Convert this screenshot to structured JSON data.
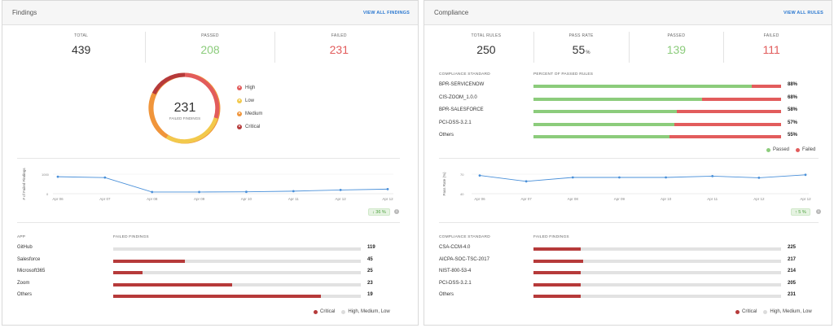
{
  "findings": {
    "title": "Findings",
    "view_all": "VIEW ALL FINDINGS",
    "stats": [
      {
        "label": "TOTAL",
        "value": "439"
      },
      {
        "label": "PASSED",
        "value": "208"
      },
      {
        "label": "FAILED",
        "value": "231"
      }
    ],
    "donut": {
      "value": "231",
      "label": "FAILED FINDINGS",
      "legend": [
        {
          "label": "High",
          "color": "#e25c5c"
        },
        {
          "label": "Low",
          "color": "#f2c94c"
        },
        {
          "label": "Medium",
          "color": "#f0953b"
        },
        {
          "label": "Critical",
          "color": "#b63a3a"
        }
      ]
    },
    "trend": {
      "ylabel": "# of Failed Findings",
      "yticks": [
        "1000",
        "0"
      ],
      "badge": "36 %",
      "info": "i"
    },
    "table": {
      "col_app": "APP",
      "col_findings": "FAILED FINDINGS",
      "rows": [
        {
          "label": "GitHub",
          "value": "119",
          "fraction": 0.0
        },
        {
          "label": "Salesforce",
          "value": "45",
          "fraction": 0.29
        },
        {
          "label": "Microsoft365",
          "value": "25",
          "fraction": 0.12
        },
        {
          "label": "Zoom",
          "value": "23",
          "fraction": 0.48
        },
        {
          "label": "Others",
          "value": "19",
          "fraction": 0.84
        }
      ],
      "legend": [
        {
          "label": "Critical",
          "color": "#b63a3a"
        },
        {
          "label": "High, Medium, Low",
          "color": "#dcdcdc"
        }
      ]
    }
  },
  "compliance": {
    "title": "Compliance",
    "view_all": "VIEW ALL RULES",
    "stats": [
      {
        "label": "TOTAL RULES",
        "value": "250"
      },
      {
        "label": "PASS RATE",
        "value": "55",
        "unit": "%"
      },
      {
        "label": "PASSED",
        "value": "139"
      },
      {
        "label": "FAILED",
        "value": "111"
      }
    ],
    "standards": {
      "col_standard": "COMPLIANCE STANDARD",
      "col_percent": "PERCENT OF PASSED RULES",
      "rows": [
        {
          "label": "BPR-SERVICENOW",
          "value": "88%",
          "fraction": 0.88
        },
        {
          "label": "CIS-ZOOM_1.0.0",
          "value": "68%",
          "fraction": 0.68
        },
        {
          "label": "BPR-SALESFORCE",
          "value": "58%",
          "fraction": 0.58
        },
        {
          "label": "PCI-DSS-3.2.1",
          "value": "57%",
          "fraction": 0.57
        },
        {
          "label": "Others",
          "value": "55%",
          "fraction": 0.55
        }
      ],
      "legend": [
        {
          "label": "Passed",
          "color": "#8ccc7c"
        },
        {
          "label": "Failed",
          "color": "#e25c5c"
        }
      ]
    },
    "trend": {
      "ylabel": "Pass Rate (%)",
      "yticks": [
        "70",
        "40"
      ],
      "badge": "5 %",
      "info": "i"
    },
    "failed": {
      "col_standard": "COMPLIANCE STANDARD",
      "col_findings": "FAILED FINDINGS",
      "rows": [
        {
          "label": "CSA-CCM-4.0",
          "value": "225",
          "fraction": 0.19
        },
        {
          "label": "AICPA-SOC-TSC-2017",
          "value": "217",
          "fraction": 0.2
        },
        {
          "label": "NIST-800-53-4",
          "value": "214",
          "fraction": 0.19
        },
        {
          "label": "PCI-DSS-3.2.1",
          "value": "205",
          "fraction": 0.19
        },
        {
          "label": "Others",
          "value": "231",
          "fraction": 0.19
        }
      ],
      "legend": [
        {
          "label": "Critical",
          "color": "#b63a3a"
        },
        {
          "label": "High, Medium, Low",
          "color": "#dcdcdc"
        }
      ]
    }
  },
  "chart_data": [
    {
      "type": "line",
      "ylabel": "# of Failed Findings",
      "x": [
        "Apr 06",
        "Apr 07",
        "Apr 08",
        "Apr 09",
        "Apr 10",
        "Apr 11",
        "Apr 12",
        "Apr 12"
      ],
      "series": [
        {
          "values": [
            1000,
            950,
            100,
            100,
            110,
            150,
            220,
            270
          ]
        }
      ],
      "ylim": [
        0,
        1150
      ],
      "grid": true
    },
    {
      "type": "line",
      "ylabel": "Pass Rate (%)",
      "x": [
        "Apr 06",
        "Apr 07",
        "Apr 08",
        "Apr 09",
        "Apr 10",
        "Apr 11",
        "Apr 12",
        "Apr 12"
      ],
      "series": [
        {
          "values": [
            68,
            59,
            65,
            65,
            65,
            67,
            64.5,
            69
          ]
        }
      ],
      "ylim": [
        40,
        75
      ],
      "grid": true
    }
  ]
}
